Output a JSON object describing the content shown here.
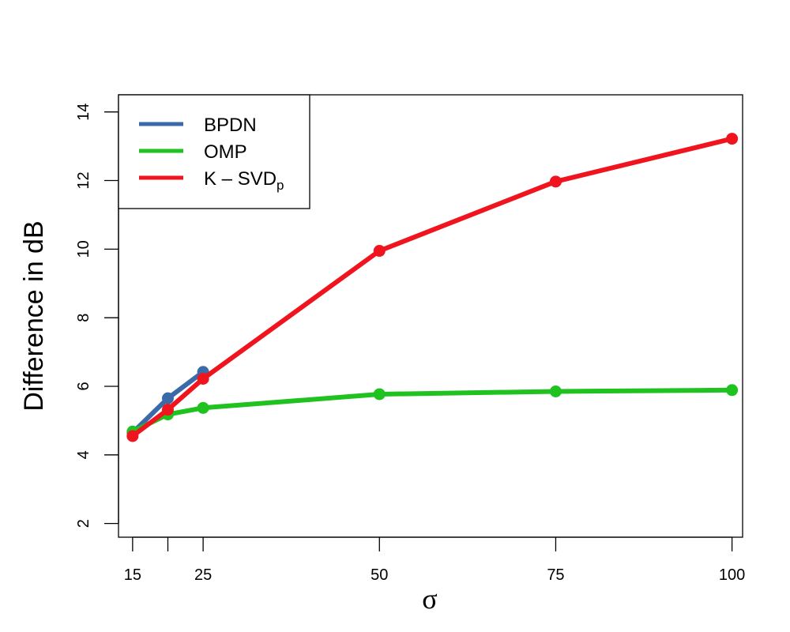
{
  "chart_data": {
    "type": "line",
    "xlabel": "σ",
    "ylabel": "Difference in dB",
    "xlim": [
      13,
      101.5
    ],
    "ylim": [
      1.6,
      14.5
    ],
    "x_ticks": [
      15,
      20,
      25,
      50,
      75,
      100
    ],
    "x_tick_labels": [
      "15",
      "",
      "25",
      "50",
      "75",
      "100"
    ],
    "y_ticks": [
      2,
      4,
      6,
      8,
      10,
      12,
      14
    ],
    "y_tick_labels": [
      "2",
      "4",
      "6",
      "8",
      "10",
      "12",
      "14"
    ],
    "grid": false,
    "legend_position": "top-left",
    "series": [
      {
        "name": "BPDN",
        "color": "#3a6aa8",
        "x": [
          15,
          20,
          25
        ],
        "y": [
          4.65,
          5.65,
          6.42
        ]
      },
      {
        "name": "OMP",
        "color": "#1fc21f",
        "x": [
          15,
          20,
          25,
          50,
          75,
          100
        ],
        "y": [
          4.68,
          5.18,
          5.37,
          5.77,
          5.85,
          5.89
        ]
      },
      {
        "name": "K – SVD",
        "name_subscript": "p",
        "color": "#f0141e",
        "x": [
          15,
          20,
          25,
          50,
          75,
          100
        ],
        "y": [
          4.55,
          5.32,
          6.22,
          9.95,
          11.97,
          13.22
        ]
      }
    ]
  }
}
